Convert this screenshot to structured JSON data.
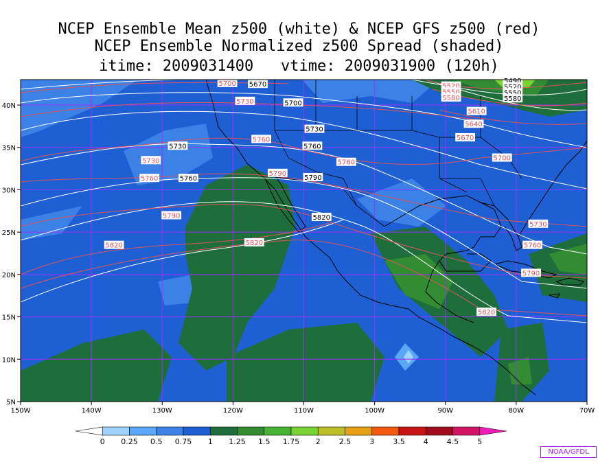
{
  "titles": [
    "NCEP Ensemble Mean z500 (white) & NCEP GFS z500 (red)",
    "NCEP Ensemble Normalized z500 Spread (shaded)",
    "itime: 2009031400   vtime: 2009031900 (120h)"
  ],
  "map": {
    "lon_range": [
      -150,
      -70
    ],
    "lat_range": [
      5,
      43
    ],
    "lon_ticks": [
      "150W",
      "140W",
      "130W",
      "120W",
      "110W",
      "100W",
      "90W",
      "80W",
      "70W"
    ],
    "lat_ticks": [
      "5N",
      "10N",
      "15N",
      "20N",
      "25N",
      "30N",
      "35N",
      "40N"
    ],
    "background_color": "#1f5fd4",
    "gridline_color": "#9b30ff"
  },
  "white_contours": [
    {
      "label": "5670",
      "lon": -116.5,
      "lat": 42.5
    },
    {
      "label": "5700",
      "lon": -111.5,
      "lat": 40.3
    },
    {
      "label": "5730",
      "lon": -108.5,
      "lat": 37.2
    },
    {
      "label": "5730",
      "lon": -127.8,
      "lat": 35.2
    },
    {
      "label": "5760",
      "lon": -108.8,
      "lat": 35.2
    },
    {
      "label": "5760",
      "lon": -126.3,
      "lat": 31.4
    },
    {
      "label": "5790",
      "lon": -108.7,
      "lat": 31.5
    },
    {
      "label": "5820",
      "lon": -107.5,
      "lat": 26.8
    },
    {
      "label": "5490",
      "lon": -80.5,
      "lat": 42.9
    },
    {
      "label": "5520",
      "lon": -80.5,
      "lat": 42.2
    },
    {
      "label": "5550",
      "lon": -80.5,
      "lat": 41.5
    },
    {
      "label": "5580",
      "lon": -80.5,
      "lat": 40.8
    }
  ],
  "red_contours": [
    {
      "label": "5700",
      "lon": -120.8,
      "lat": 42.6
    },
    {
      "label": "5730",
      "lon": -118.3,
      "lat": 40.5
    },
    {
      "label": "5760",
      "lon": -116.0,
      "lat": 36.0
    },
    {
      "label": "5730",
      "lon": -131.6,
      "lat": 33.5
    },
    {
      "label": "5760",
      "lon": -131.8,
      "lat": 31.4
    },
    {
      "label": "5790",
      "lon": -128.7,
      "lat": 27.0
    },
    {
      "label": "5790",
      "lon": -113.7,
      "lat": 32.0
    },
    {
      "label": "5760",
      "lon": -104.0,
      "lat": 33.3
    },
    {
      "label": "5820",
      "lon": -136.8,
      "lat": 23.5
    },
    {
      "label": "5820",
      "lon": -117.0,
      "lat": 23.8
    },
    {
      "label": "5520",
      "lon": -89.2,
      "lat": 42.3
    },
    {
      "label": "5550",
      "lon": -89.2,
      "lat": 41.6
    },
    {
      "label": "5580",
      "lon": -89.2,
      "lat": 40.9
    },
    {
      "label": "5610",
      "lon": -85.6,
      "lat": 39.3
    },
    {
      "label": "5640",
      "lon": -86.0,
      "lat": 37.8
    },
    {
      "label": "5670",
      "lon": -87.2,
      "lat": 36.2
    },
    {
      "label": "5700",
      "lon": -82.0,
      "lat": 33.8
    },
    {
      "label": "5730",
      "lon": -76.9,
      "lat": 26.0
    },
    {
      "label": "5760",
      "lon": -77.7,
      "lat": 23.5
    },
    {
      "label": "5790",
      "lon": -77.9,
      "lat": 20.2
    },
    {
      "label": "5820",
      "lon": -84.2,
      "lat": 15.6
    }
  ],
  "colorbar": {
    "labels": [
      "0",
      "0.25",
      "0.5",
      "0.75",
      "1",
      "1.25",
      "1.5",
      "1.75",
      "2",
      "2.5",
      "3",
      "3.5",
      "4",
      "4.5",
      "5"
    ],
    "colors": [
      "#ffffff",
      "#a0d2ff",
      "#5aa8f5",
      "#3c82e6",
      "#1f5fd4",
      "#1e6e3c",
      "#328c32",
      "#46b432",
      "#78d232",
      "#bebe28",
      "#e6a014",
      "#f05a0a",
      "#c81414",
      "#a00a1e",
      "#d21464",
      "#f01eb4"
    ]
  },
  "credit": "NOAA/GFDL"
}
